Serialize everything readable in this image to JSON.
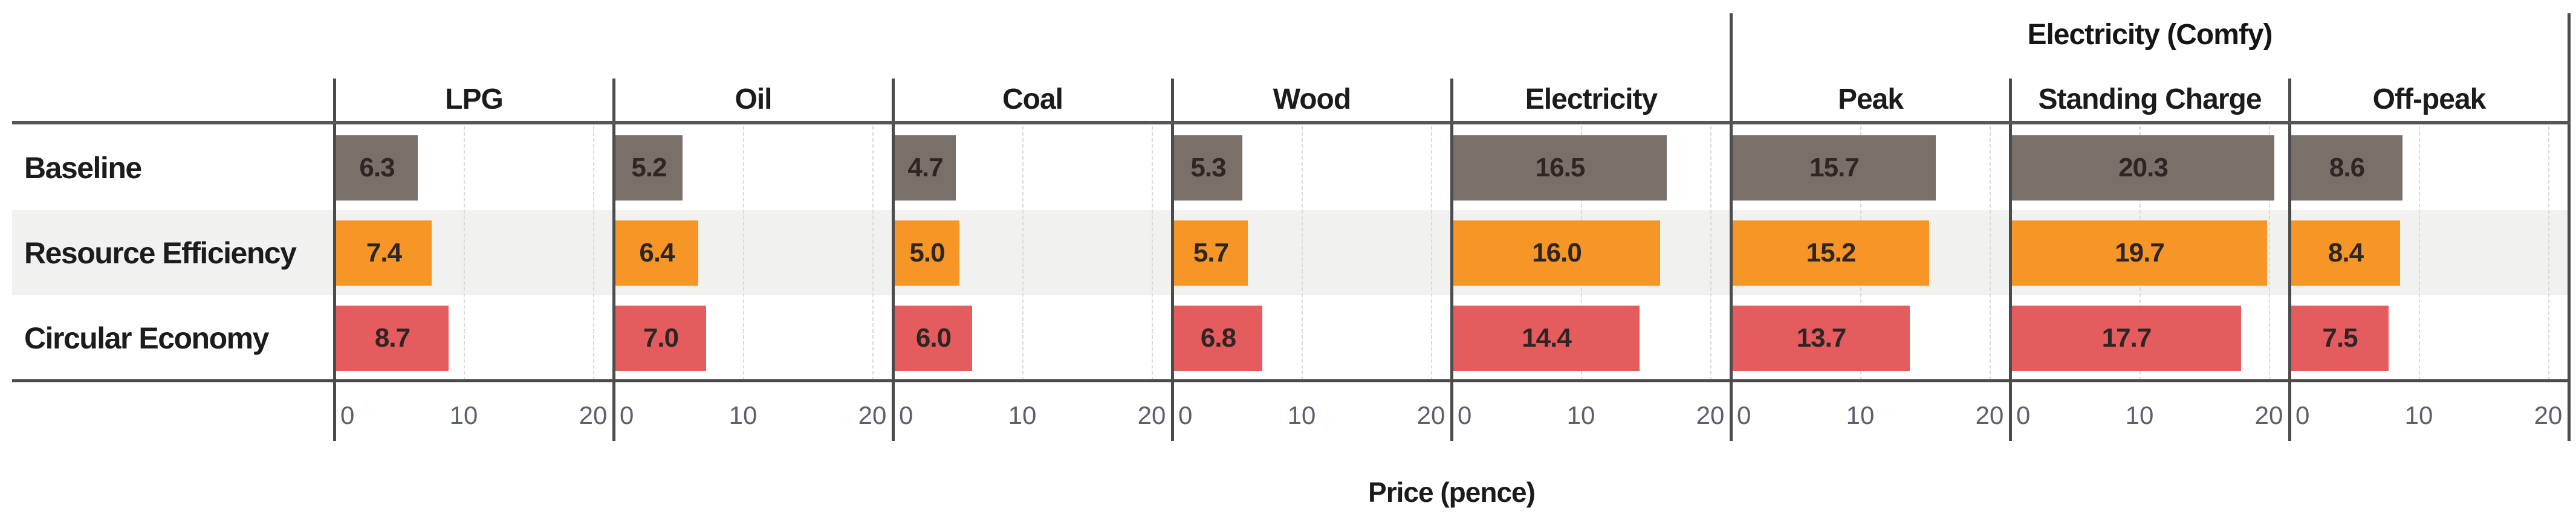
{
  "chart_data": {
    "type": "bar",
    "orientation": "horizontal",
    "xlabel": "Price (pence)",
    "x_ticks": [
      "0",
      "10",
      "20"
    ],
    "x_tick_values": [
      0,
      10,
      20
    ],
    "x_max": 21.6,
    "grid": "dashed-vertical",
    "rows": [
      "Baseline",
      "Resource Efficiency",
      "Circular Economy"
    ],
    "row_colors": [
      "#79706a",
      "#f59626",
      "#e45c5e"
    ],
    "zebra_band_color": "#f1f1f0",
    "group_header": {
      "label": "Electricity (Comfy)",
      "panels": [
        "Peak",
        "Standing Charge",
        "Off-peak"
      ]
    },
    "panels": [
      {
        "header": "LPG",
        "in_group": false,
        "values": [
          6.3,
          7.4,
          8.7
        ]
      },
      {
        "header": "Oil",
        "in_group": false,
        "values": [
          5.2,
          6.4,
          7.0
        ]
      },
      {
        "header": "Coal",
        "in_group": false,
        "values": [
          4.7,
          5.0,
          6.0
        ]
      },
      {
        "header": "Wood",
        "in_group": false,
        "values": [
          5.3,
          5.7,
          6.8
        ]
      },
      {
        "header": "Electricity",
        "in_group": false,
        "values": [
          16.5,
          16.0,
          14.4
        ]
      },
      {
        "header": "Peak",
        "in_group": true,
        "values": [
          15.7,
          15.2,
          13.7
        ]
      },
      {
        "header": "Standing Charge",
        "in_group": true,
        "values": [
          20.3,
          19.7,
          17.7
        ]
      },
      {
        "header": "Off-peak",
        "in_group": true,
        "values": [
          8.6,
          8.4,
          7.5
        ]
      }
    ]
  }
}
